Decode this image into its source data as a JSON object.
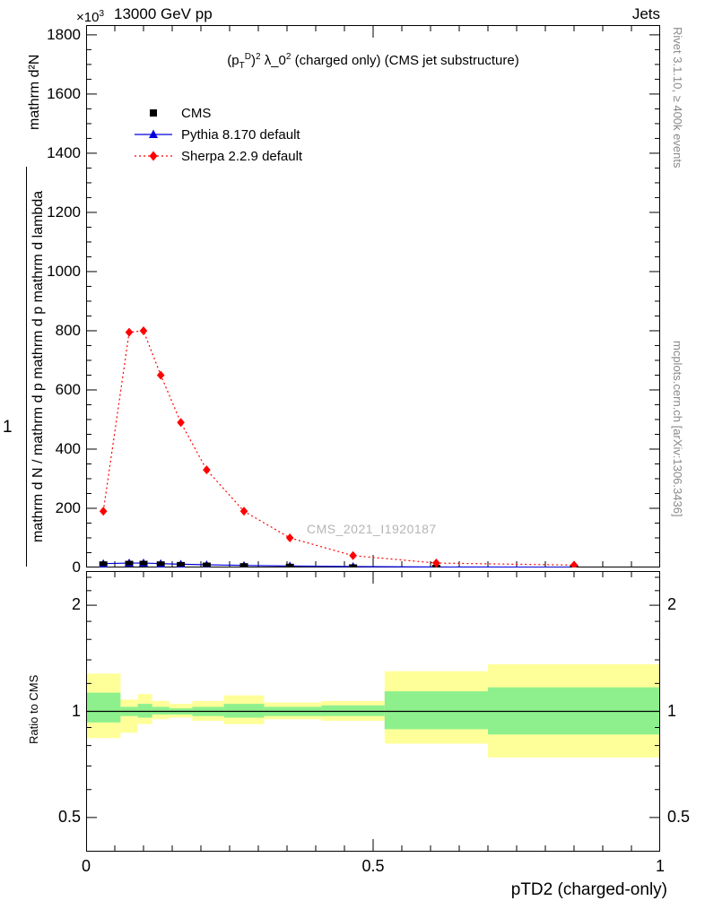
{
  "header": {
    "power_base": "×10",
    "power_exp": "3",
    "energy": "13000 GeV pp",
    "topic": "Jets"
  },
  "plot_title": {
    "parts": [
      {
        "t": "(p",
        "k": "n"
      },
      {
        "t": "T",
        "k": "sub"
      },
      {
        "t": "D",
        "k": "sup"
      },
      {
        "t": ")",
        "k": "n"
      },
      {
        "t": "2",
        "k": "sup"
      },
      {
        "t": " λ_0",
        "k": "n"
      },
      {
        "t": "2",
        "k": "sup"
      },
      {
        "t": " (charged only) (CMS jet substructure)",
        "k": "n"
      }
    ]
  },
  "left_axis": {
    "numerator": "mathrm d²N",
    "fraction_one": "1",
    "denominator": "mathrm d N / mathrm d p mathrm d p mathrm d lambda"
  },
  "watermark": "CMS_2021_I1920187",
  "side_notes": {
    "top_right": "Rivet 3.1.10, ≥ 400k events",
    "bottom_right": "mcplots.cern.ch [arXiv:1306.3436]"
  },
  "colors": {
    "cms": "#000000",
    "pythia": "#0000dd",
    "sherpa": "#ff0000",
    "band_yellow": "#ffff99",
    "band_green": "#8df08d",
    "watermark_gray": "#b5b5b5",
    "note_gray": "#8a8a8a"
  },
  "chart_data": [
    {
      "id": "main",
      "type": "line",
      "title": "(p_T^D)^2 λ_0^2 (charged only) (CMS jet substructure)",
      "xlabel": "pTD2 (charged-only)",
      "y_scale_note": "×10³",
      "xlim": [
        0,
        1
      ],
      "ylim": [
        0,
        1833
      ],
      "grid": false,
      "legend_position": "top-left",
      "x_ticks": {
        "major": [
          0,
          0.5,
          1
        ],
        "labels": [
          "0",
          "0.5",
          "1"
        ],
        "minor_step": 0.05
      },
      "y_ticks": {
        "major_step": 200,
        "labels": [
          "0",
          "200",
          "400",
          "600",
          "800",
          "1000",
          "1200",
          "1400",
          "1600",
          "1800"
        ],
        "minor_step": 50
      },
      "series": [
        {
          "name": "CMS",
          "marker": "square",
          "color": "#000000",
          "line": "none",
          "x": [
            0.03,
            0.075,
            0.1,
            0.13,
            0.165,
            0.21,
            0.275,
            0.355,
            0.465,
            0.61,
            0.85
          ],
          "y": [
            13,
            15,
            15,
            13,
            11,
            9,
            7,
            5,
            3,
            1.5,
            0.8
          ]
        },
        {
          "name": "Pythia 8.170 default",
          "marker": "triangle",
          "color": "#0000dd",
          "line": "solid",
          "x": [
            0.03,
            0.075,
            0.1,
            0.13,
            0.165,
            0.21,
            0.275,
            0.355,
            0.465,
            0.61,
            0.85
          ],
          "y": [
            13,
            15,
            15,
            13,
            11,
            9,
            7,
            5,
            3,
            1.5,
            0.8
          ]
        },
        {
          "name": "Sherpa 2.2.9 default",
          "marker": "diamond",
          "color": "#ff0000",
          "line": "dotted",
          "x": [
            0.03,
            0.075,
            0.1,
            0.13,
            0.165,
            0.21,
            0.275,
            0.355,
            0.465,
            0.61,
            0.85
          ],
          "y": [
            190,
            795,
            800,
            650,
            490,
            330,
            190,
            100,
            40,
            15,
            8
          ]
        }
      ]
    },
    {
      "id": "ratio",
      "type": "band",
      "ylabel": "Ratio to CMS",
      "xlim": [
        0,
        1
      ],
      "ylog_range": [
        0.4,
        2.5
      ],
      "unity": 1,
      "y_ticks": {
        "major": [
          0.5,
          1,
          2
        ],
        "labels": [
          "0.5",
          "1",
          "2"
        ],
        "minor": [
          0.6,
          0.7,
          0.8,
          0.9,
          1.2,
          1.4,
          1.6,
          1.8,
          2.2,
          2.4
        ]
      },
      "x_ticks": {
        "major": [
          0,
          0.5,
          1
        ],
        "labels": [
          "0",
          "0.5",
          "1"
        ],
        "minor_step": 0.05
      },
      "bands": [
        {
          "x0": 0.0,
          "x1": 0.06,
          "yellow": [
            0.84,
            1.28
          ],
          "green": [
            0.93,
            1.13
          ]
        },
        {
          "x0": 0.06,
          "x1": 0.09,
          "yellow": [
            0.87,
            1.08
          ],
          "green": [
            0.97,
            1.03
          ]
        },
        {
          "x0": 0.09,
          "x1": 0.115,
          "yellow": [
            0.92,
            1.12
          ],
          "green": [
            0.96,
            1.05
          ]
        },
        {
          "x0": 0.115,
          "x1": 0.145,
          "yellow": [
            0.95,
            1.07
          ],
          "green": [
            0.98,
            1.03
          ]
        },
        {
          "x0": 0.145,
          "x1": 0.185,
          "yellow": [
            0.96,
            1.05
          ],
          "green": [
            0.98,
            1.02
          ]
        },
        {
          "x0": 0.185,
          "x1": 0.24,
          "yellow": [
            0.94,
            1.07
          ],
          "green": [
            0.97,
            1.03
          ]
        },
        {
          "x0": 0.24,
          "x1": 0.31,
          "yellow": [
            0.92,
            1.11
          ],
          "green": [
            0.96,
            1.05
          ]
        },
        {
          "x0": 0.31,
          "x1": 0.41,
          "yellow": [
            0.95,
            1.06
          ],
          "green": [
            0.97,
            1.03
          ]
        },
        {
          "x0": 0.41,
          "x1": 0.52,
          "yellow": [
            0.94,
            1.07
          ],
          "green": [
            0.97,
            1.04
          ]
        },
        {
          "x0": 0.52,
          "x1": 0.7,
          "yellow": [
            0.81,
            1.3
          ],
          "green": [
            0.89,
            1.14
          ]
        },
        {
          "x0": 0.7,
          "x1": 1.0,
          "yellow": [
            0.74,
            1.36
          ],
          "green": [
            0.86,
            1.17
          ]
        }
      ]
    }
  ]
}
